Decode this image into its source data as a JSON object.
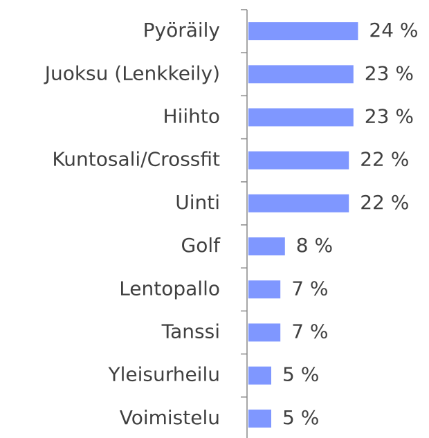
{
  "chart_data": {
    "type": "bar",
    "orientation": "horizontal",
    "categories": [
      "Pyöräily",
      "Juoksu (Lenkkeily)",
      "Hiihto",
      "Kuntosali/Crossfit",
      "Uinti",
      "Golf",
      "Lentopallo",
      "Tanssi",
      "Yleisurheilu",
      "Voimistelu"
    ],
    "values": [
      24,
      23,
      23,
      22,
      22,
      8,
      7,
      7,
      5,
      5
    ],
    "value_labels": [
      "24 %",
      "23 %",
      "23 %",
      "22 %",
      "22 %",
      "8 %",
      "7 %",
      "7 %",
      "5 %",
      "5 %"
    ],
    "color": "#7f97ff"
  }
}
